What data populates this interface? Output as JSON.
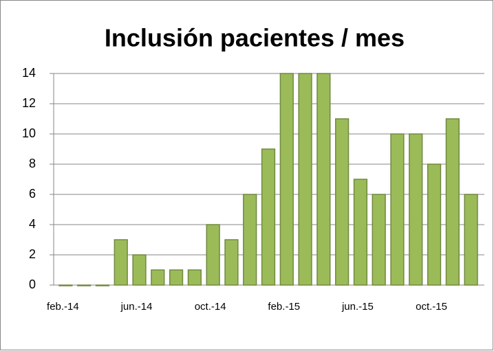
{
  "chart_data": {
    "type": "bar",
    "title": "Inclusión pacientes / mes",
    "categories": [
      "feb.-14",
      null,
      null,
      null,
      "jun.-14",
      null,
      null,
      null,
      "oct.-14",
      null,
      null,
      null,
      "feb.-15",
      null,
      null,
      null,
      "jun.-15",
      null,
      null,
      null,
      "oct.-15",
      null,
      null
    ],
    "values": [
      0,
      0,
      0,
      3,
      2,
      1,
      1,
      1,
      4,
      3,
      6,
      9,
      14,
      14,
      14,
      11,
      7,
      6,
      10,
      10,
      8,
      11,
      6
    ],
    "color": "#9bbb59",
    "ylim": [
      0,
      14
    ],
    "yticks": [
      0,
      2,
      4,
      6,
      8,
      10,
      12,
      14
    ],
    "grid": true
  }
}
